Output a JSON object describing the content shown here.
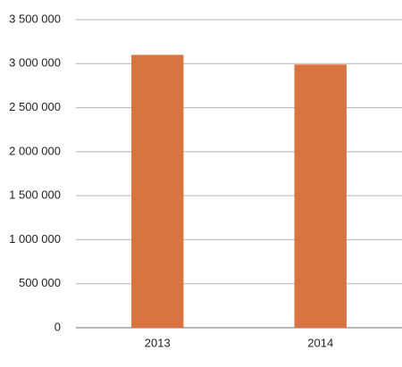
{
  "chart_data": {
    "type": "bar",
    "categories": [
      "2013",
      "2014"
    ],
    "values": [
      3100000,
      2990000
    ],
    "color": "#d9733f",
    "ylim": [
      0,
      3500000
    ],
    "yticks": [
      0,
      {
        "value": 500000,
        "label": "500 000"
      },
      {
        "value": 1000000,
        "label": "1 000 000"
      },
      {
        "value": 1500000,
        "label": "1 500 000"
      },
      {
        "value": 2000000,
        "label": "2 000 000"
      },
      {
        "value": 2500000,
        "label": "2 500 000"
      },
      {
        "value": 3000000,
        "label": "3 000 000"
      },
      {
        "value": 3500000,
        "label": "3 500 000"
      }
    ],
    "grid": true
  }
}
